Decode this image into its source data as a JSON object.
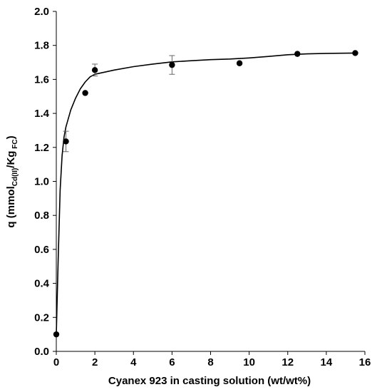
{
  "chart_data": {
    "type": "scatter",
    "xlabel": "Cyanex 923 in casting solution (wt/wt%)",
    "ylabel": {
      "main": "q (mmol",
      "sub1": "Cd(II)",
      "mid": "/Kg",
      "sub2": " FC",
      "end": ")"
    },
    "xlim": [
      0,
      16
    ],
    "ylim": [
      0.0,
      2.0
    ],
    "xticks": [
      "0",
      "2",
      "4",
      "6",
      "8",
      "10",
      "12",
      "14",
      "16"
    ],
    "yticks": [
      "0.0",
      "0.2",
      "0.4",
      "0.6",
      "0.8",
      "1.0",
      "1.2",
      "1.4",
      "1.6",
      "1.8",
      "2.0"
    ],
    "grid": false,
    "legend": "none",
    "colors": {
      "points": "#000000",
      "line": "#000000",
      "axis": "#000000"
    },
    "points": [
      {
        "x": 0,
        "y": 0.1
      },
      {
        "x": 0.5,
        "y": 1.235,
        "err": 0.06
      },
      {
        "x": 1.5,
        "y": 1.52
      },
      {
        "x": 2,
        "y": 1.655,
        "err": 0.035
      },
      {
        "x": 6,
        "y": 1.685,
        "err": 0.055
      },
      {
        "x": 9.5,
        "y": 1.695
      },
      {
        "x": 12.5,
        "y": 1.75
      },
      {
        "x": 15.5,
        "y": 1.755
      }
    ],
    "fit_curve": [
      [
        0,
        0.1
      ],
      [
        0.1,
        0.55
      ],
      [
        0.2,
        0.95
      ],
      [
        0.3,
        1.15
      ],
      [
        0.4,
        1.26
      ],
      [
        0.5,
        1.32
      ],
      [
        0.75,
        1.42
      ],
      [
        1.0,
        1.49
      ],
      [
        1.25,
        1.545
      ],
      [
        1.5,
        1.585
      ],
      [
        1.75,
        1.615
      ],
      [
        2,
        1.63
      ],
      [
        3,
        1.655
      ],
      [
        4,
        1.675
      ],
      [
        5,
        1.69
      ],
      [
        6,
        1.703
      ],
      [
        7,
        1.71
      ],
      [
        8,
        1.716
      ],
      [
        9,
        1.72
      ],
      [
        10,
        1.726
      ],
      [
        11,
        1.735
      ],
      [
        12,
        1.745
      ],
      [
        13,
        1.75
      ],
      [
        14,
        1.753
      ],
      [
        15.5,
        1.755
      ]
    ]
  }
}
